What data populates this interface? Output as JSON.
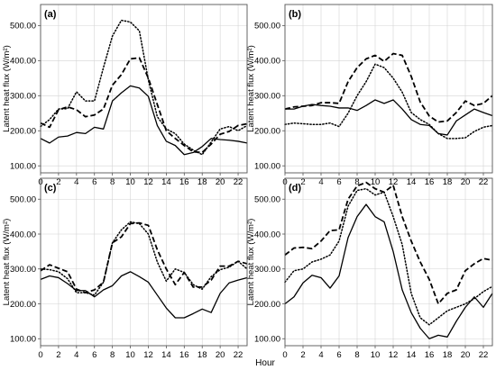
{
  "chart_data": {
    "type": "line",
    "xlabel": "Hour",
    "ylabel": "Latent heat flux (W/m²)",
    "xlim": [
      0,
      23
    ],
    "ylim": [
      80,
      560
    ],
    "x_ticks": [
      0,
      2,
      4,
      6,
      8,
      10,
      12,
      14,
      16,
      18,
      20,
      22
    ],
    "y_ticks": [
      100,
      200,
      300,
      400,
      500
    ],
    "y_tick_labels": [
      "100.00",
      "200.00",
      "300.00",
      "400.00",
      "500.00"
    ],
    "grid": true,
    "line_color": "#000000",
    "panels": [
      {
        "label": "(a)",
        "series": [
          {
            "style": "solid",
            "values": [
              178,
              165,
              182,
              185,
              195,
              192,
              210,
              205,
              285,
              308,
              328,
              322,
              298,
              215,
              170,
              158,
              132,
              138,
              155,
              178,
              175,
              173,
              170,
              165
            ]
          },
          {
            "style": "dashed",
            "values": [
              222,
              210,
              260,
              268,
              260,
              240,
              245,
              262,
              330,
              360,
              405,
              408,
              350,
              275,
              200,
              178,
              158,
              140,
              138,
              162,
              190,
              198,
              215,
              220
            ]
          },
          {
            "style": "dotted",
            "values": [
              212,
              232,
              262,
              263,
              311,
              285,
              285,
              380,
              470,
              515,
              510,
              485,
              345,
              240,
              205,
              192,
              162,
              145,
              132,
              168,
              205,
              212,
              200,
              215
            ]
          }
        ]
      },
      {
        "label": "(b)",
        "series": [
          {
            "style": "solid",
            "values": [
              262,
              262,
              270,
              275,
              272,
              270,
              265,
              265,
              258,
              272,
              288,
              278,
              288,
              262,
              232,
              218,
              215,
              192,
              188,
              228,
              245,
              262,
              252,
              243
            ]
          },
          {
            "style": "dashed",
            "values": [
              262,
              268,
              270,
              272,
              280,
              280,
              278,
              340,
              380,
              405,
              415,
              398,
              420,
              415,
              355,
              282,
              242,
              225,
              228,
              252,
              285,
              272,
              278,
              300
            ]
          },
          {
            "style": "dotted",
            "values": [
              218,
              222,
              220,
              218,
              218,
              222,
              212,
              250,
              300,
              340,
              390,
              380,
              350,
              310,
              252,
              232,
              218,
              192,
              178,
              178,
              180,
              198,
              210,
              215
            ]
          }
        ]
      },
      {
        "label": "(c)",
        "series": [
          {
            "style": "solid",
            "values": [
              270,
              280,
              275,
              258,
              238,
              238,
              220,
              240,
              252,
              280,
              292,
              278,
              262,
              225,
              188,
              160,
              160,
              172,
              185,
              175,
              230,
              260,
              268,
              275
            ]
          },
          {
            "style": "dashed",
            "values": [
              295,
              312,
              302,
              292,
              242,
              232,
              240,
              262,
              375,
              392,
              430,
              432,
              425,
              355,
              300,
              255,
              290,
              248,
              248,
              268,
              308,
              308,
              322,
              315
            ]
          },
          {
            "style": "dotted",
            "values": [
              300,
              298,
              292,
              272,
              232,
              232,
              225,
              262,
              375,
              412,
              435,
              430,
              400,
              320,
              265,
              300,
              290,
              255,
              242,
              278,
              298,
              305,
              322,
              300
            ]
          }
        ]
      },
      {
        "label": "(d)",
        "series": [
          {
            "style": "solid",
            "values": [
              200,
              220,
              260,
              282,
              275,
              245,
              280,
              390,
              450,
              485,
              450,
              435,
              350,
              240,
              175,
              130,
              100,
              110,
              105,
              150,
              190,
              220,
              190,
              230
            ]
          },
          {
            "style": "dashed",
            "values": [
              340,
              360,
              362,
              358,
              380,
              410,
              412,
              500,
              538,
              548,
              530,
              520,
              540,
              450,
              380,
              320,
              270,
              200,
              230,
              240,
              295,
              315,
              330,
              325
            ]
          },
          {
            "style": "dotted",
            "values": [
              262,
              295,
              300,
              320,
              328,
              340,
              380,
              480,
              525,
              530,
              512,
              520,
              450,
              370,
              230,
              160,
              140,
              160,
              180,
              190,
              200,
              215,
              235,
              250
            ]
          }
        ]
      }
    ]
  }
}
